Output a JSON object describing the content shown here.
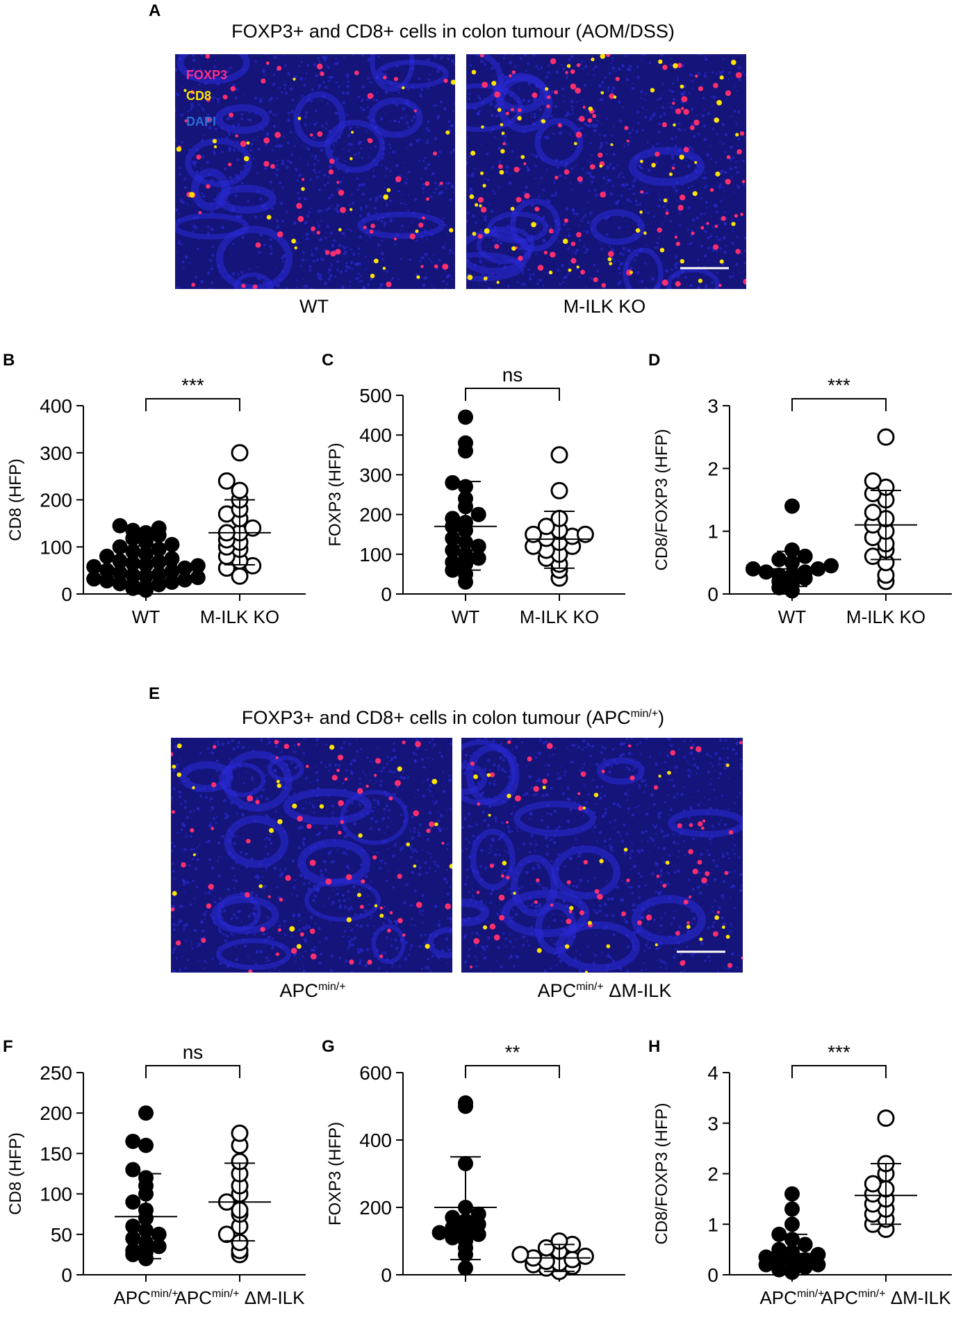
{
  "panel_letters": {
    "A": "A",
    "B": "B",
    "C": "C",
    "D": "D",
    "E": "E",
    "F": "F",
    "G": "G",
    "H": "H"
  },
  "section_a": {
    "title": "FOXP3+ and CD8+ cells in colon tumour (AOM/DSS)",
    "stain_legend": [
      {
        "label": "FOXP3",
        "color": "#ff2f8e"
      },
      {
        "label": "CD8",
        "color": "#ffe400"
      },
      {
        "label": "DAPI",
        "color": "#2f6fd8"
      }
    ],
    "left_caption": "WT",
    "right_caption": "M-ILK KO"
  },
  "section_e": {
    "title_main": "FOXP3+ and CD8+ cells in colon tumour (APC",
    "title_sup": "min/+",
    "title_end": ")",
    "left_caption_main": "APC",
    "left_caption_sup": "min/+",
    "right_caption_main": "APC",
    "right_caption_sup": "min/+",
    "right_caption_end": " ΔM-ILK"
  },
  "colors": {
    "dapi_bg": "#14147a",
    "dapi": "#2a2ad8",
    "foxp3": "#ff2f6e",
    "cd8": "#ffe400",
    "scalebar": "#ffffff"
  },
  "chart_data": [
    {
      "id": "B",
      "type": "scatter",
      "ylabel": "CD8 (HFP)",
      "ylim": [
        0,
        400
      ],
      "yticks": [
        0,
        100,
        200,
        300,
        400
      ],
      "categories": [
        "WT",
        "M-ILK KO"
      ],
      "significance": "***",
      "series": [
        {
          "filled": true,
          "values": [
            8,
            12,
            15,
            18,
            20,
            22,
            25,
            28,
            30,
            32,
            35,
            38,
            40,
            42,
            45,
            48,
            50,
            55,
            58,
            60,
            62,
            65,
            68,
            70,
            75,
            80,
            85,
            90,
            95,
            100,
            105,
            110,
            118,
            125,
            130,
            135,
            140,
            145
          ],
          "mean": 62,
          "sd_low": 22,
          "sd_high": 102
        },
        {
          "filled": false,
          "values": [
            38,
            55,
            60,
            70,
            80,
            95,
            100,
            110,
            115,
            130,
            130,
            140,
            160,
            170,
            180,
            200,
            220,
            240,
            300
          ],
          "mean": 130,
          "sd_low": 62,
          "sd_high": 200
        }
      ]
    },
    {
      "id": "C",
      "type": "scatter",
      "ylabel": "FOXP3 (HFP)",
      "ylim": [
        0,
        500
      ],
      "yticks": [
        0,
        100,
        200,
        300,
        400,
        500
      ],
      "categories": [
        "WT",
        "M-ILK KO"
      ],
      "significance": "ns",
      "series": [
        {
          "filled": true,
          "values": [
            30,
            50,
            60,
            75,
            80,
            90,
            100,
            110,
            120,
            130,
            140,
            160,
            170,
            180,
            190,
            200,
            220,
            240,
            270,
            280,
            360,
            380,
            445
          ],
          "mean": 170,
          "sd_low": 60,
          "sd_high": 283
        },
        {
          "filled": false,
          "values": [
            40,
            60,
            75,
            90,
            100,
            110,
            120,
            120,
            130,
            140,
            145,
            150,
            150,
            160,
            170,
            190,
            260,
            350
          ],
          "mean": 138,
          "sd_low": 65,
          "sd_high": 208
        }
      ]
    },
    {
      "id": "D",
      "type": "scatter",
      "ylabel": "CD8/FOXP3 (HFP)",
      "ylim": [
        0,
        3
      ],
      "yticks": [
        0,
        1,
        2,
        3
      ],
      "categories": [
        "WT",
        "M-ILK KO"
      ],
      "significance": "***",
      "series": [
        {
          "filled": true,
          "values": [
            0.05,
            0.1,
            0.15,
            0.2,
            0.25,
            0.3,
            0.3,
            0.35,
            0.35,
            0.4,
            0.4,
            0.45,
            0.5,
            0.55,
            0.6,
            0.7,
            1.4
          ],
          "mean": 0.4,
          "sd_low": 0.12,
          "sd_high": 0.68
        },
        {
          "filled": false,
          "values": [
            0.2,
            0.3,
            0.5,
            0.6,
            0.7,
            0.8,
            0.9,
            1.0,
            1.1,
            1.2,
            1.3,
            1.5,
            1.6,
            1.7,
            1.8,
            2.5
          ],
          "mean": 1.1,
          "sd_low": 0.55,
          "sd_high": 1.65
        }
      ]
    },
    {
      "id": "F",
      "type": "scatter",
      "ylabel": "CD8 (HFP)",
      "ylim": [
        0,
        250
      ],
      "yticks": [
        0,
        50,
        100,
        150,
        200,
        250
      ],
      "categories": [
        "APC min/+",
        "APC min/+ ΔM-ILK"
      ],
      "significance": "ns",
      "series": [
        {
          "filled": true,
          "values": [
            20,
            25,
            28,
            30,
            35,
            40,
            45,
            50,
            55,
            60,
            70,
            80,
            90,
            100,
            110,
            120,
            130,
            160,
            165,
            200
          ],
          "mean": 72,
          "sd_low": 20,
          "sd_high": 125
        },
        {
          "filled": false,
          "values": [
            25,
            30,
            40,
            50,
            60,
            75,
            80,
            90,
            100,
            110,
            125,
            140,
            160,
            175
          ],
          "mean": 90,
          "sd_low": 42,
          "sd_high": 138
        }
      ]
    },
    {
      "id": "G",
      "type": "scatter",
      "ylabel": "FOXP3 (HFP)",
      "ylim": [
        0,
        600
      ],
      "yticks": [
        0,
        200,
        400,
        600
      ],
      "categories": [
        "",
        ""
      ],
      "significance": "**",
      "series": [
        {
          "filled": true,
          "values": [
            20,
            60,
            80,
            100,
            110,
            120,
            125,
            130,
            140,
            150,
            160,
            170,
            180,
            200,
            330,
            500,
            510
          ],
          "mean": 200,
          "sd_low": 45,
          "sd_high": 350
        },
        {
          "filled": false,
          "values": [
            10,
            20,
            25,
            30,
            35,
            40,
            45,
            50,
            55,
            60,
            70,
            80,
            90,
            100
          ],
          "mean": 50,
          "sd_low": 10,
          "sd_high": 90
        }
      ]
    },
    {
      "id": "H",
      "type": "scatter",
      "ylabel": "CD8/FOXP3 (HFP)",
      "ylim": [
        0,
        4
      ],
      "yticks": [
        0,
        1,
        2,
        3,
        4
      ],
      "categories": [
        "APC min/+",
        "APC min/+ ΔM-ILK"
      ],
      "significance": "***",
      "series": [
        {
          "filled": true,
          "values": [
            0.05,
            0.1,
            0.15,
            0.2,
            0.2,
            0.25,
            0.3,
            0.3,
            0.35,
            0.4,
            0.45,
            0.5,
            0.6,
            0.7,
            0.8,
            1.0,
            1.3,
            1.6
          ],
          "mean": 0.42,
          "sd_low": 0.05,
          "sd_high": 0.8
        },
        {
          "filled": false,
          "values": [
            0.9,
            1.0,
            1.1,
            1.2,
            1.3,
            1.4,
            1.5,
            1.6,
            1.7,
            1.8,
            2.0,
            2.2,
            3.1
          ],
          "mean": 1.57,
          "sd_low": 1.0,
          "sd_high": 2.2
        }
      ]
    }
  ]
}
